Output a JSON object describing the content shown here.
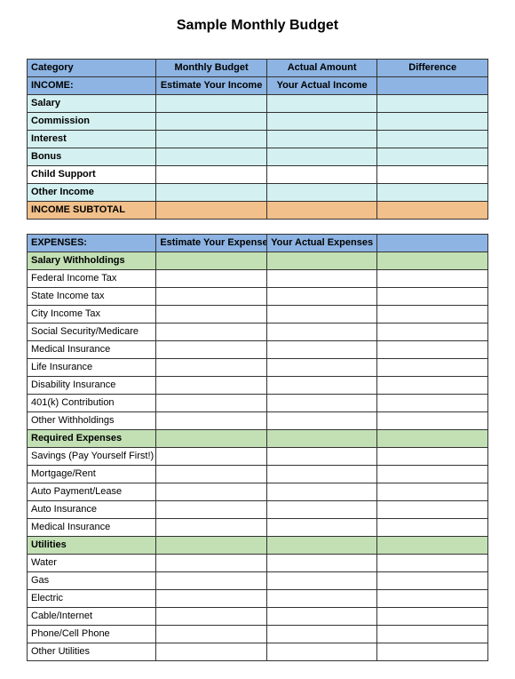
{
  "title": "Sample Monthly Budget",
  "colors": {
    "blue_header": "#8db4e2",
    "light_cyan": "#d4f0f0",
    "orange": "#f2c08a",
    "light_green": "#c2e0b4",
    "white": "#ffffff"
  },
  "columns": [
    "Category",
    "Monthly Budget",
    "Actual Amount",
    "Difference"
  ],
  "col_widths_pct": [
    28,
    24,
    24,
    24
  ],
  "rows": [
    {
      "type": "header",
      "bg": "#8db4e2",
      "bold": true,
      "align": [
        "left",
        "center",
        "center",
        "center"
      ],
      "cells": [
        "Category",
        "Monthly Budget",
        "Actual Amount",
        "Difference"
      ]
    },
    {
      "type": "row",
      "bg": "#8db4e2",
      "bold": true,
      "align": [
        "left",
        "center",
        "center",
        "left"
      ],
      "cells": [
        "INCOME:",
        "Estimate Your Income",
        "Your Actual Income",
        ""
      ]
    },
    {
      "type": "row",
      "bg": "#d4f0f0",
      "bold": true,
      "cells": [
        "Salary",
        "",
        "",
        ""
      ]
    },
    {
      "type": "row",
      "bg": "#d4f0f0",
      "bold": true,
      "cells": [
        "Commission",
        "",
        "",
        ""
      ]
    },
    {
      "type": "row",
      "bg": "#d4f0f0",
      "bold": true,
      "cells": [
        "Interest",
        "",
        "",
        ""
      ]
    },
    {
      "type": "row",
      "bg": "#d4f0f0",
      "bold": true,
      "cells": [
        "Bonus",
        "",
        "",
        ""
      ]
    },
    {
      "type": "row",
      "bg": "#ffffff",
      "bold": true,
      "cells": [
        "Child Support",
        "",
        "",
        ""
      ]
    },
    {
      "type": "row",
      "bg": "#d4f0f0",
      "bold": true,
      "cells": [
        "Other Income",
        "",
        "",
        ""
      ]
    },
    {
      "type": "row",
      "bg": "#f2c08a",
      "bold": true,
      "cells": [
        "INCOME SUBTOTAL",
        "",
        "",
        ""
      ]
    },
    {
      "type": "spacer"
    },
    {
      "type": "row",
      "bg": "#8db4e2",
      "bold": true,
      "align": [
        "left",
        "center",
        "center",
        "left"
      ],
      "cells": [
        "EXPENSES:",
        "Estimate Your Expenses",
        "Your Actual Expenses",
        ""
      ]
    },
    {
      "type": "row",
      "bg": "#c2e0b4",
      "bold": true,
      "cells": [
        "Salary Withholdings",
        "",
        "",
        ""
      ]
    },
    {
      "type": "row",
      "bg": "#ffffff",
      "cells": [
        "Federal Income Tax",
        "",
        "",
        ""
      ]
    },
    {
      "type": "row",
      "bg": "#ffffff",
      "cells": [
        "State Income tax",
        "",
        "",
        ""
      ]
    },
    {
      "type": "row",
      "bg": "#ffffff",
      "cells": [
        "City Income Tax",
        "",
        "",
        ""
      ]
    },
    {
      "type": "row",
      "bg": "#ffffff",
      "cells": [
        "Social Security/Medicare",
        "",
        "",
        ""
      ]
    },
    {
      "type": "row",
      "bg": "#ffffff",
      "cells": [
        "Medical Insurance",
        "",
        "",
        ""
      ]
    },
    {
      "type": "row",
      "bg": "#ffffff",
      "cells": [
        "Life Insurance",
        "",
        "",
        ""
      ]
    },
    {
      "type": "row",
      "bg": "#ffffff",
      "cells": [
        "Disability Insurance",
        "",
        "",
        ""
      ]
    },
    {
      "type": "row",
      "bg": "#ffffff",
      "cells": [
        "401(k) Contribution",
        "",
        "",
        ""
      ]
    },
    {
      "type": "row",
      "bg": "#ffffff",
      "cells": [
        "Other Withholdings",
        "",
        "",
        ""
      ]
    },
    {
      "type": "row",
      "bg": "#c2e0b4",
      "bold": true,
      "cells": [
        "Required Expenses",
        "",
        "",
        ""
      ]
    },
    {
      "type": "row",
      "bg": "#ffffff",
      "cells": [
        "Savings (Pay Yourself First!)",
        "",
        "",
        ""
      ]
    },
    {
      "type": "row",
      "bg": "#ffffff",
      "cells": [
        "Mortgage/Rent",
        "",
        "",
        ""
      ]
    },
    {
      "type": "row",
      "bg": "#ffffff",
      "cells": [
        "Auto Payment/Lease",
        "",
        "",
        ""
      ]
    },
    {
      "type": "row",
      "bg": "#ffffff",
      "cells": [
        "Auto Insurance",
        "",
        "",
        ""
      ]
    },
    {
      "type": "row",
      "bg": "#ffffff",
      "cells": [
        "Medical Insurance",
        "",
        "",
        ""
      ]
    },
    {
      "type": "row",
      "bg": "#c2e0b4",
      "bold": true,
      "cells": [
        "Utilities",
        "",
        "",
        ""
      ]
    },
    {
      "type": "row",
      "bg": "#ffffff",
      "cells": [
        "Water",
        "",
        "",
        ""
      ]
    },
    {
      "type": "row",
      "bg": "#ffffff",
      "cells": [
        "Gas",
        "",
        "",
        ""
      ]
    },
    {
      "type": "row",
      "bg": "#ffffff",
      "cells": [
        "Electric",
        "",
        "",
        ""
      ]
    },
    {
      "type": "row",
      "bg": "#ffffff",
      "cells": [
        "Cable/Internet",
        "",
        "",
        ""
      ]
    },
    {
      "type": "row",
      "bg": "#ffffff",
      "cells": [
        "Phone/Cell Phone",
        "",
        "",
        ""
      ]
    },
    {
      "type": "row",
      "bg": "#ffffff",
      "cells": [
        "Other Utilities",
        "",
        "",
        ""
      ]
    }
  ]
}
